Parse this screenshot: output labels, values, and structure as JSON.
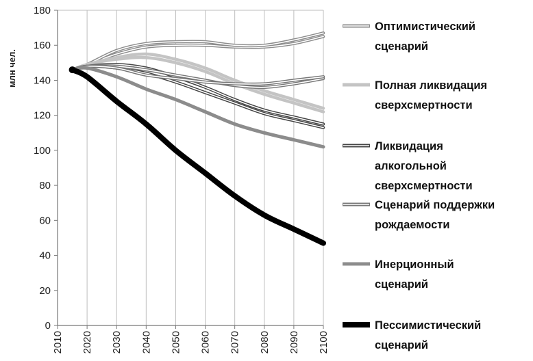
{
  "chart_data": {
    "type": "line",
    "title": "",
    "ylabel": "млн чел.",
    "xlabel": "",
    "ylim": [
      0,
      180
    ],
    "xlim": [
      2010,
      2100
    ],
    "yticks": [
      "0",
      "20",
      "40",
      "60",
      "80",
      "100",
      "120",
      "140",
      "160",
      "180"
    ],
    "xticks": [
      "2010",
      "2020",
      "2030",
      "2040",
      "2050",
      "2060",
      "2070",
      "2080",
      "2090",
      "2100"
    ],
    "grid": "vertical",
    "legend_position": "right",
    "x": [
      2015,
      2020,
      2030,
      2040,
      2050,
      2060,
      2070,
      2080,
      2090,
      2100
    ],
    "series": [
      {
        "name": "Оптимистический сценарий",
        "style": "double",
        "color": "#8c8c8c",
        "values": [
          146,
          149,
          157,
          161,
          162,
          162,
          160,
          160,
          163,
          167
        ],
        "extra_lines": [
          [
            146,
            149,
            155,
            159,
            160,
            160,
            159,
            159,
            161,
            165
          ]
        ]
      },
      {
        "name": "Полная ликвидация сверхсмертности",
        "style": "solid",
        "color": "#c4c4c4",
        "values": [
          146,
          149,
          152,
          153,
          150,
          145,
          138,
          132,
          127,
          122
        ],
        "extra_lines": [
          [
            146,
            149,
            153,
            155,
            152,
            147,
            140,
            134,
            129,
            124
          ]
        ]
      },
      {
        "name": "Ликвидация алкогольной сверхсмертности",
        "style": "double",
        "color": "#444444",
        "values": [
          146,
          148,
          149,
          147,
          142,
          136,
          129,
          123,
          119,
          115
        ],
        "extra_lines": [
          [
            146,
            148,
            147,
            144,
            139,
            133,
            127,
            121,
            117,
            113
          ]
        ]
      },
      {
        "name": "Сценарий поддержки рождаемости",
        "style": "double",
        "color": "#777777",
        "values": [
          146,
          148,
          147,
          143,
          141,
          139,
          138,
          138,
          140,
          142
        ],
        "extra_lines": [
          [
            146,
            148,
            148,
            146,
            143,
            140,
            137,
            136,
            138,
            141
          ]
        ]
      },
      {
        "name": "Инерционный сценарий",
        "style": "solid",
        "color": "#8c8c8c",
        "values": [
          146,
          147,
          142,
          135,
          129,
          122,
          115,
          110,
          106,
          102
        ]
      },
      {
        "name": "Пессимистический сценарий",
        "style": "solid",
        "color": "#000000",
        "values": [
          146,
          142,
          128,
          115,
          100,
          87,
          74,
          63,
          55,
          47
        ]
      }
    ],
    "start_marker": {
      "x": 2015,
      "y": 146
    }
  },
  "legend": [
    {
      "lines": [
        "Оптимистический",
        "сценарий"
      ]
    },
    {
      "lines": [
        "Полная ликвидация",
        "сверхсмертности"
      ]
    },
    {
      "lines": [
        "Ликвидация",
        "алкогольной",
        "сверхсмертности"
      ]
    },
    {
      "lines": [
        "Сценарий поддержки",
        "рождаемости"
      ]
    },
    {
      "lines": [
        "Инерционный",
        "сценарий"
      ]
    },
    {
      "lines": [
        "Пессимистический",
        "сценарий"
      ]
    }
  ]
}
